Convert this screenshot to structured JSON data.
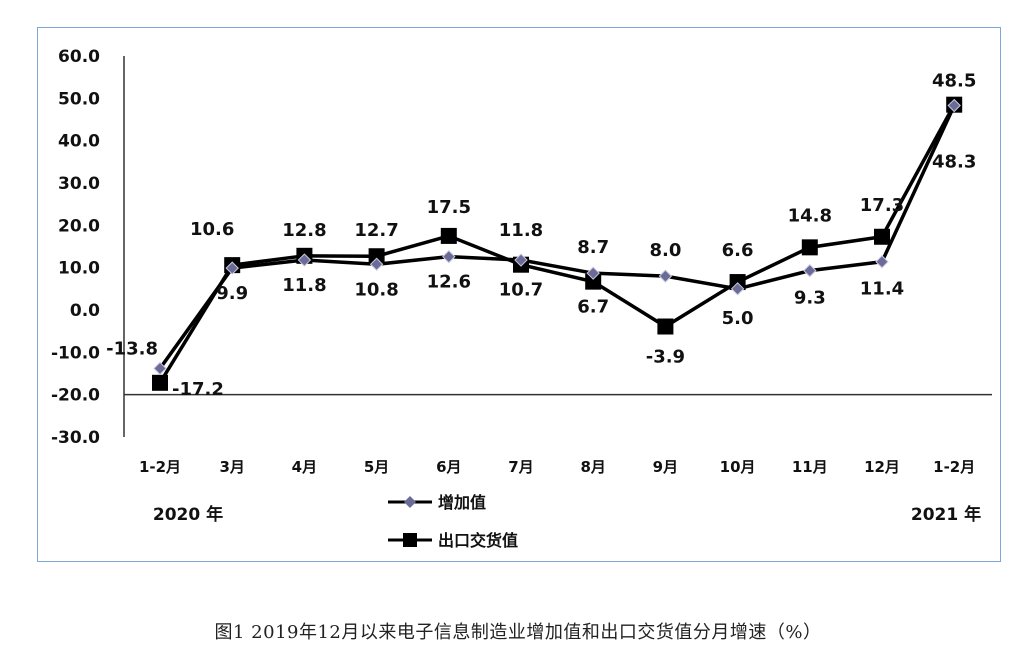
{
  "caption": "图1 2019年12月以来电子信息制造业增加值和出口交货值分月增速（%）",
  "chart_data": {
    "type": "line",
    "categories": [
      "1-2月",
      "3月",
      "4月",
      "5月",
      "6月",
      "7月",
      "8月",
      "9月",
      "10月",
      "11月",
      "12月",
      "1-2月"
    ],
    "year_labels": [
      "2020 年",
      "2021 年"
    ],
    "ylim": [
      -30,
      60
    ],
    "yticks": [
      "60.0",
      "50.0",
      "40.0",
      "30.0",
      "20.0",
      "10.0",
      "0.0",
      "-10.0",
      "-20.0",
      "-30.0"
    ],
    "grid": false,
    "legend_position": "bottom-center",
    "series": [
      {
        "name": "增加值",
        "color": "#6b6b9a",
        "marker": "diamond",
        "values": [
          -13.8,
          9.9,
          11.8,
          10.8,
          12.6,
          11.8,
          8.7,
          8.0,
          5.0,
          9.3,
          11.4,
          48.3
        ],
        "labels": [
          "-13.8",
          "9.9",
          "11.8",
          "10.8",
          "12.6",
          "11.8",
          "8.7",
          "8.0",
          "5.0",
          "9.3",
          "11.4",
          "48.3"
        ]
      },
      {
        "name": "出口交货值",
        "color": "#000000",
        "marker": "square",
        "values": [
          -17.2,
          10.6,
          12.8,
          12.7,
          17.5,
          10.7,
          6.7,
          -3.9,
          6.6,
          14.8,
          17.3,
          48.5
        ],
        "labels": [
          "-17.2",
          "10.6",
          "12.8",
          "12.7",
          "17.5",
          "10.7",
          "6.7",
          "-3.9",
          "6.6",
          "14.8",
          "17.3",
          "48.5"
        ]
      }
    ]
  }
}
